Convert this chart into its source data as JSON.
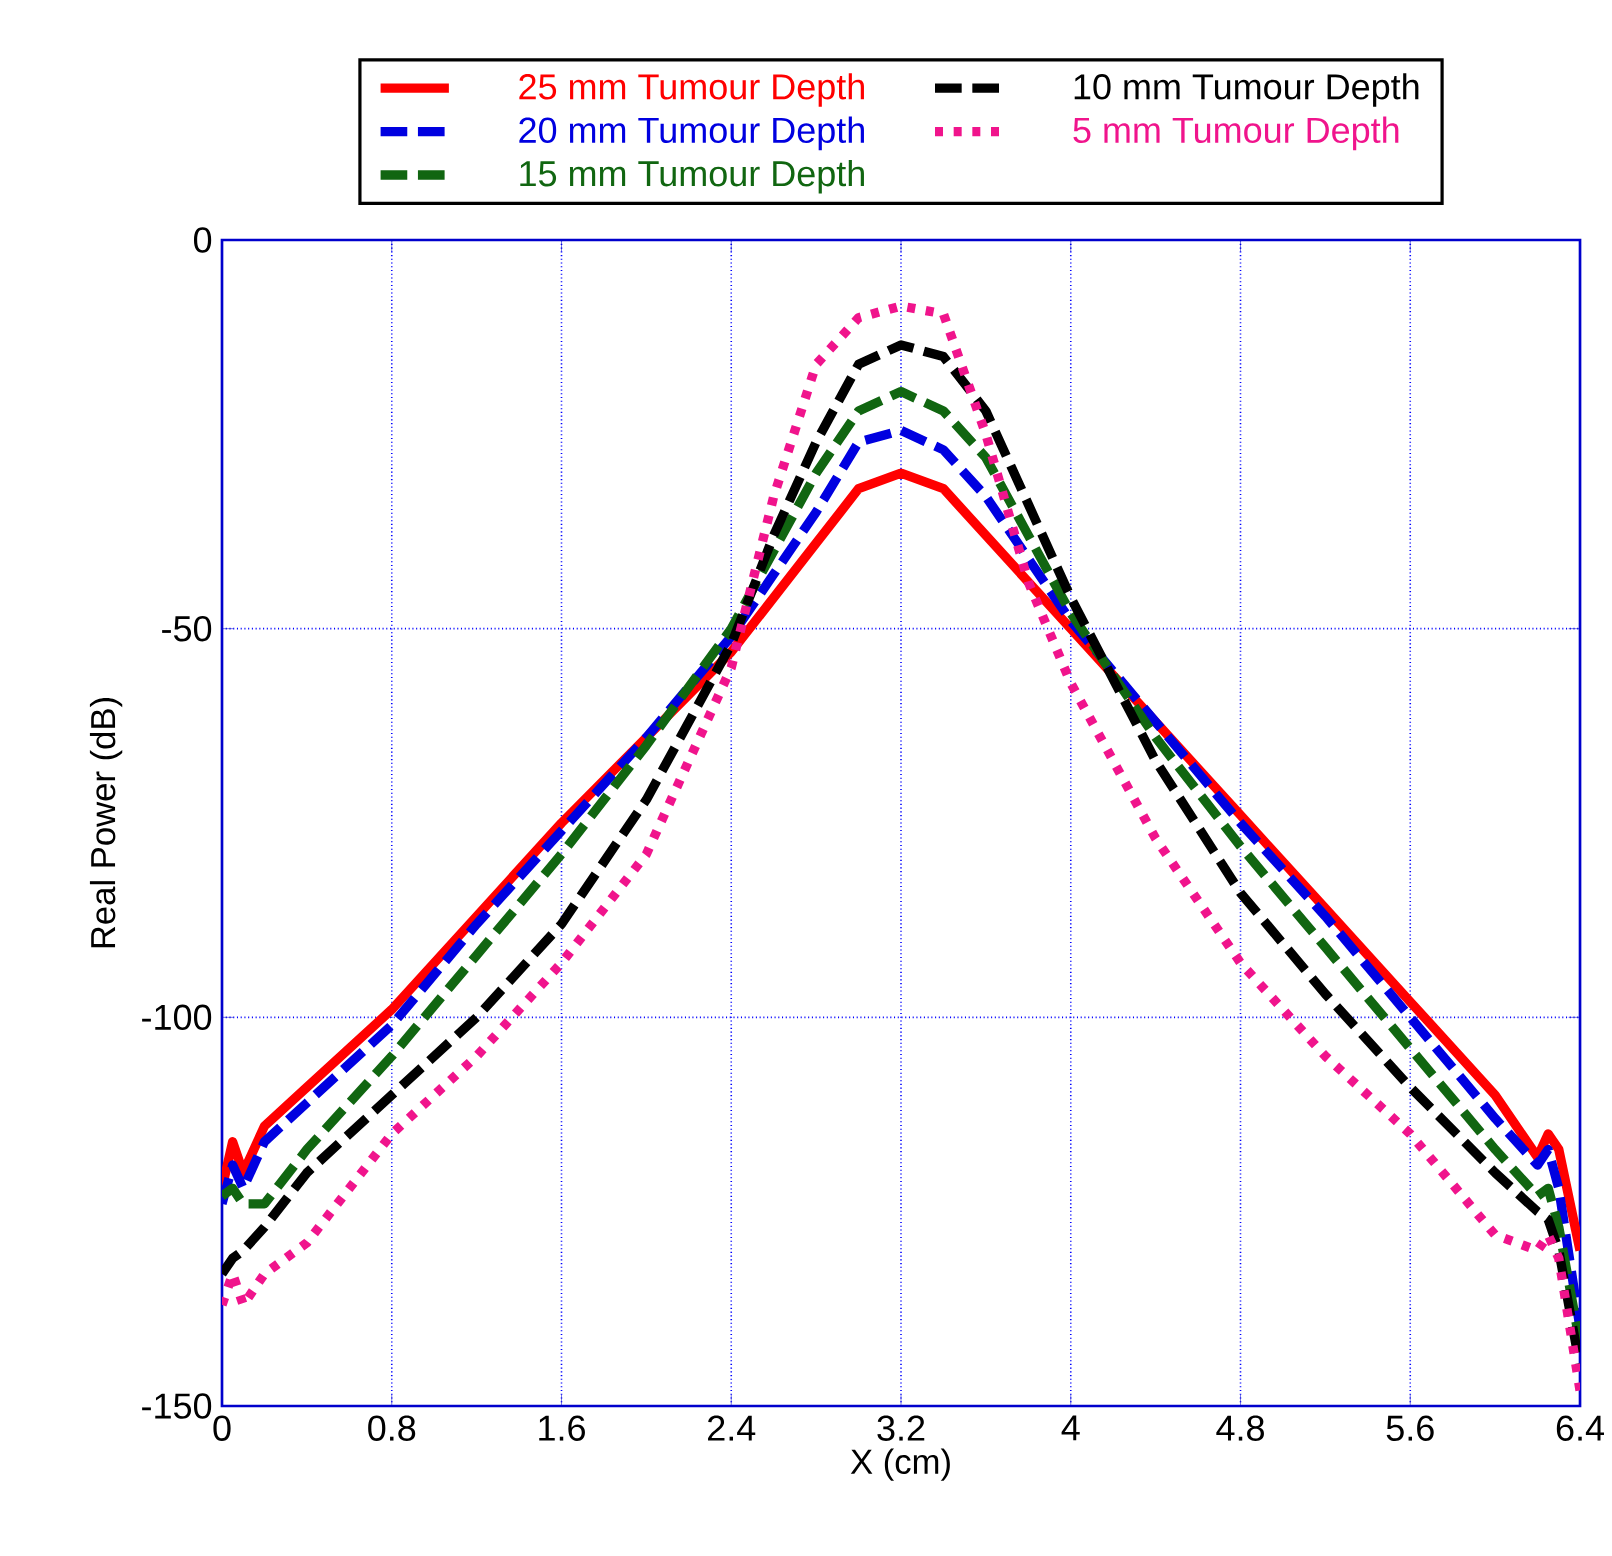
{
  "chart_data": {
    "type": "line",
    "xlabel": "X (cm)",
    "ylabel": "Real Power (dB)",
    "x": [
      0,
      0.05,
      0.1,
      0.2,
      0.4,
      0.8,
      1.2,
      1.6,
      2.0,
      2.4,
      2.6,
      2.8,
      3.0,
      3.2,
      3.4,
      3.6,
      3.8,
      4.0,
      4.4,
      4.8,
      5.2,
      5.6,
      6.0,
      6.2,
      6.25,
      6.3,
      6.4
    ],
    "series": [
      {
        "name": "25 mm Tumour Depth",
        "color": "#ff0000",
        "line_style": "solid",
        "values": [
          -122,
          -116,
          -120,
          -114,
          -109,
          -99,
          -87,
          -75,
          -64,
          -53,
          -46,
          -39,
          -32,
          -30,
          -32,
          -38,
          -44,
          -50,
          -62,
          -74,
          -86,
          -98,
          -110,
          -118,
          -115,
          -117,
          -130
        ]
      },
      {
        "name": "20 mm Tumour Depth",
        "color": "#0000e0",
        "line_style": "dashed",
        "values": [
          -124,
          -119,
          -122,
          -116,
          -111,
          -101,
          -88,
          -76,
          -64,
          -51,
          -43,
          -35,
          -26,
          -24.5,
          -27,
          -33,
          -41,
          -49,
          -62,
          -75,
          -87,
          -100,
          -113,
          -119,
          -117,
          -122,
          -140
        ]
      },
      {
        "name": "15 mm Tumour Depth",
        "color": "#116611",
        "line_style": "dashed",
        "values": [
          -123,
          -122,
          -124,
          -124,
          -117,
          -105,
          -92,
          -79,
          -65,
          -50,
          -40,
          -30,
          -22,
          -19.5,
          -22,
          -28,
          -38,
          -48,
          -64,
          -78,
          -91,
          -104,
          -117,
          -123,
          -122,
          -127,
          -142
        ]
      },
      {
        "name": "10 mm Tumour Depth",
        "color": "#000000",
        "line_style": "dashed",
        "values": [
          -133,
          -131,
          -130,
          -127,
          -120,
          -110,
          -100,
          -88,
          -72,
          -52,
          -38,
          -26,
          -16,
          -13.5,
          -15,
          -22,
          -34,
          -46,
          -67,
          -84,
          -97,
          -109,
          -120,
          -125,
          -126,
          -130,
          -145
        ]
      },
      {
        "name": "5 mm Tumour Depth",
        "color": "#f0148c",
        "line_style": "dotted",
        "values": [
          -137,
          -133,
          -137,
          -133,
          -129,
          -115,
          -105,
          -93,
          -79,
          -55,
          -33,
          -16,
          -10,
          -8.5,
          -9.5,
          -25,
          -44,
          -57,
          -77,
          -93,
          -105,
          -115,
          -128,
          -130,
          -128,
          -131,
          -148
        ]
      }
    ],
    "xlim": [
      0,
      6.4
    ],
    "ylim": [
      -150,
      0
    ],
    "xticks": [
      0,
      0.8,
      1.6,
      2.4,
      3.2,
      4,
      4.8,
      5.6,
      6.4
    ],
    "yticks": [
      -150,
      -100,
      -50,
      0
    ],
    "grid": true,
    "legend": "top"
  }
}
